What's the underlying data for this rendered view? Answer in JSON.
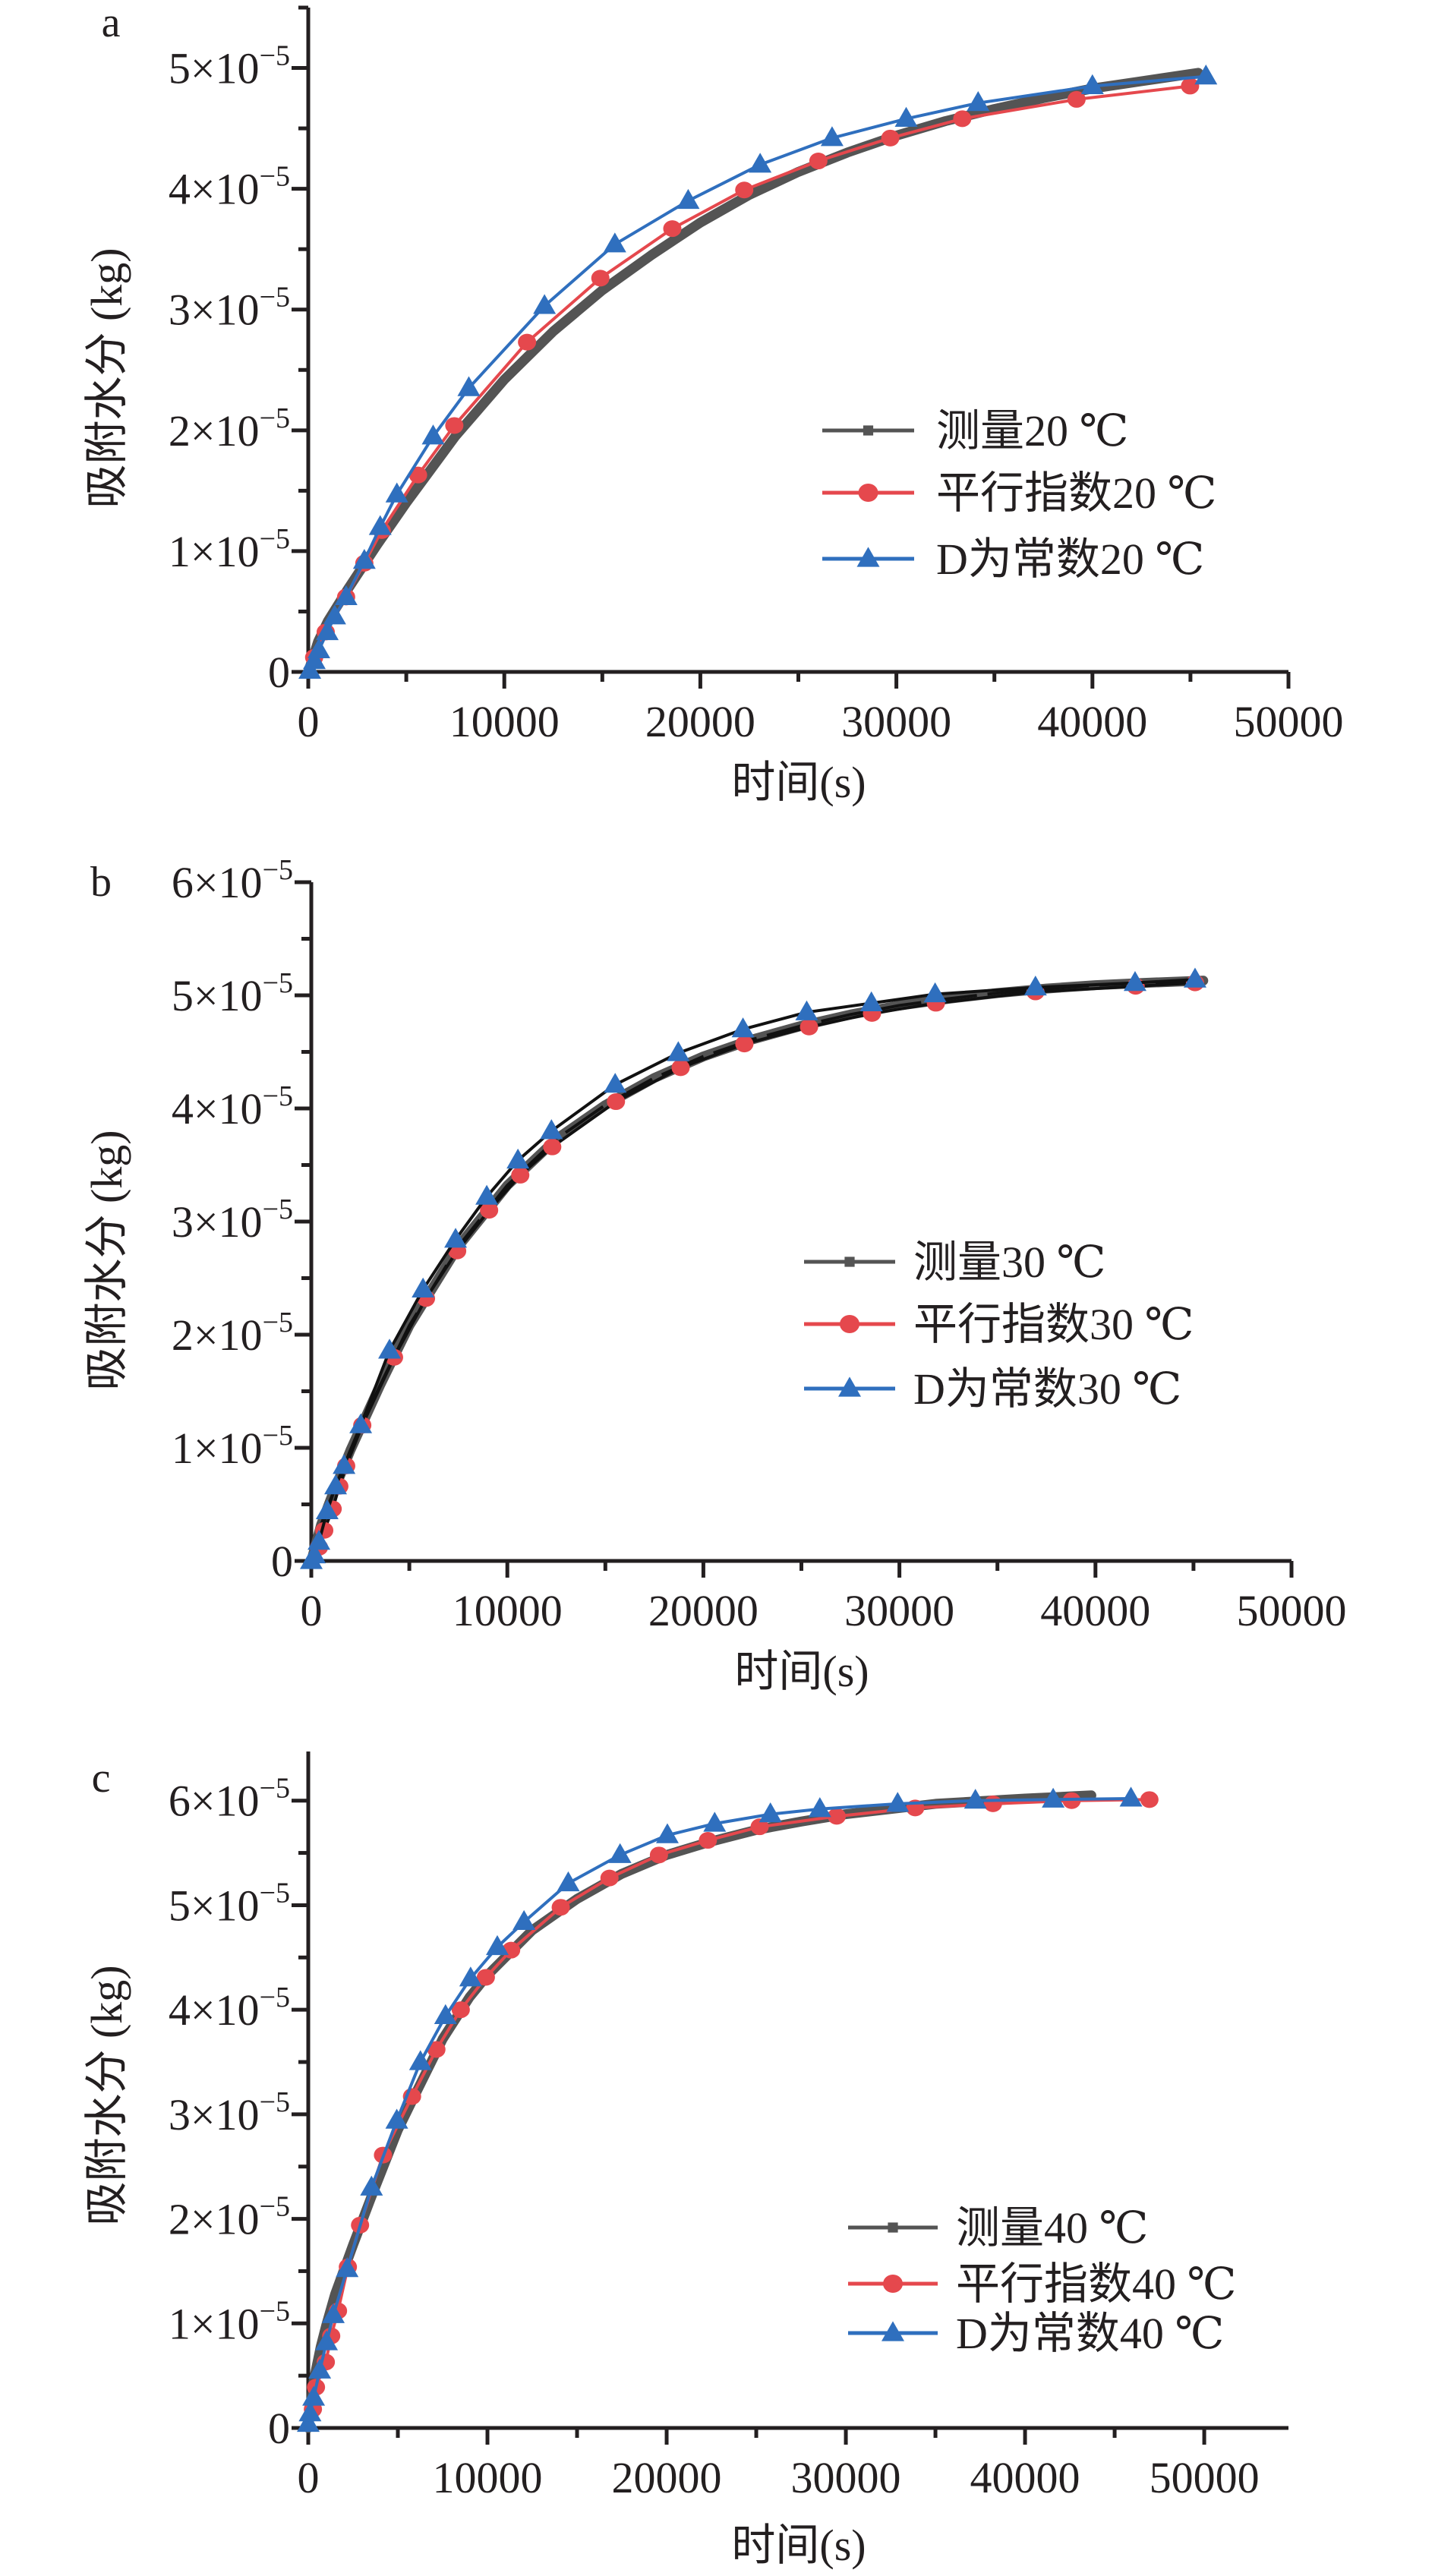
{
  "colors": {
    "measured": "#545454",
    "parallel": "#e5484d",
    "d_constant": "#2f6fbe",
    "axis": "#231f20"
  },
  "chart_data": [
    {
      "type": "line",
      "panel_label": "a",
      "xlabel": "时间(s)",
      "ylabel": "吸附水分 (kg)",
      "xlim": [
        0,
        50000
      ],
      "ylim": [
        0,
        5.5e-05
      ],
      "x_ticks": [
        0,
        10000,
        20000,
        30000,
        40000,
        50000
      ],
      "x_tick_labels": [
        "0",
        "10000",
        "20000",
        "30000",
        "40000",
        "50000"
      ],
      "y_ticks": [
        0,
        1e-05,
        2e-05,
        3e-05,
        4e-05,
        5e-05
      ],
      "y_tick_labels": [
        {
          "mantissa": "",
          "text": "0"
        },
        {
          "mantissa": "1×10",
          "exp": "−5"
        },
        {
          "mantissa": "2×10",
          "exp": "−5"
        },
        {
          "mantissa": "3×10",
          "exp": "−5"
        },
        {
          "mantissa": "4×10",
          "exp": "−5"
        },
        {
          "mantissa": "5×10",
          "exp": "−5"
        }
      ],
      "grid": false,
      "legend_position": "center-right",
      "series": [
        {
          "name": "测量20 ℃",
          "marker": "square",
          "style": "measured",
          "x": [
            0,
            500,
            1000,
            2000,
            3500,
            5000,
            7500,
            10000,
            12500,
            15000,
            17500,
            20000,
            22500,
            25000,
            27500,
            30000,
            32500,
            35000,
            37500,
            40000,
            42500,
            45400
          ],
          "y": [
            0,
            2.5e-06,
            4.2e-06,
            6.8e-06,
            1.05e-05,
            1.4e-05,
            1.95e-05,
            2.42e-05,
            2.82e-05,
            3.16e-05,
            3.45e-05,
            3.72e-05,
            3.95e-05,
            4.14e-05,
            4.3e-05,
            4.44e-05,
            4.56e-05,
            4.66e-05,
            4.75e-05,
            4.83e-05,
            4.89e-05,
            4.96e-05
          ]
        },
        {
          "name": "平行指数20 ℃",
          "marker": "circle",
          "style": "parallel",
          "x": [
            0,
            300,
            890,
            1930,
            2860,
            3750,
            5600,
            7450,
            11160,
            14900,
            18570,
            22240,
            26020,
            29690,
            33360,
            39190,
            44980
          ],
          "y": [
            0,
            1.2e-06,
            3.3e-06,
            6.2e-06,
            9e-06,
            1.17e-05,
            1.63e-05,
            2.04e-05,
            2.73e-05,
            3.26e-05,
            3.67e-05,
            3.99e-05,
            4.23e-05,
            4.42e-05,
            4.58e-05,
            4.74e-05,
            4.85e-05
          ]
        },
        {
          "name": "D为常数20 ℃",
          "marker": "triangle",
          "style": "d_constant",
          "x": [
            80,
            310,
            540,
            970,
            1350,
            1930,
            2860,
            3670,
            4520,
            6370,
            8190,
            12050,
            15640,
            19380,
            23050,
            26720,
            30500,
            34170,
            40000,
            45790
          ],
          "y": [
            1e-07,
            9e-07,
            1.8e-06,
            3.3e-06,
            4.6e-06,
            6.2e-06,
            9.2e-06,
            1.2e-05,
            1.47e-05,
            1.95e-05,
            2.35e-05,
            3.03e-05,
            3.54e-05,
            3.9e-05,
            4.2e-05,
            4.42e-05,
            4.58e-05,
            4.71e-05,
            4.85e-05,
            4.93e-05
          ]
        }
      ]
    },
    {
      "type": "line",
      "panel_label": "b",
      "xlabel": "时间(s)",
      "ylabel": "吸附水分 (kg)",
      "xlim": [
        0,
        50000
      ],
      "ylim": [
        0,
        6e-05
      ],
      "x_ticks": [
        0,
        10000,
        20000,
        30000,
        40000,
        50000
      ],
      "x_tick_labels": [
        "0",
        "10000",
        "20000",
        "30000",
        "40000",
        "50000"
      ],
      "y_ticks": [
        0,
        1e-05,
        2e-05,
        3e-05,
        4e-05,
        5e-05,
        6e-05
      ],
      "y_tick_labels": [
        {
          "mantissa": "",
          "text": "0"
        },
        {
          "mantissa": "1×10",
          "exp": "−5"
        },
        {
          "mantissa": "2×10",
          "exp": "−5"
        },
        {
          "mantissa": "3×10",
          "exp": "−5"
        },
        {
          "mantissa": "4×10",
          "exp": "−5"
        },
        {
          "mantissa": "5×10",
          "exp": "−5"
        },
        {
          "mantissa": "6×10",
          "exp": "−5"
        }
      ],
      "grid": false,
      "legend_position": "center-right",
      "series": [
        {
          "name": "测量30 ℃",
          "marker": "square",
          "style": "measured",
          "x": [
            0,
            500,
            1000,
            2000,
            3500,
            5000,
            7500,
            10000,
            12500,
            15000,
            17500,
            20000,
            22500,
            25000,
            27500,
            30000,
            32500,
            35000,
            37500,
            40000,
            42500,
            45500
          ],
          "y": [
            0,
            3.2e-06,
            5.5e-06,
            9.8e-06,
            1.55e-05,
            2.08e-05,
            2.78e-05,
            3.32e-05,
            3.73e-05,
            4.03e-05,
            4.27e-05,
            4.46e-05,
            4.61e-05,
            4.73e-05,
            4.83e-05,
            4.91e-05,
            4.97e-05,
            5.02e-05,
            5.06e-05,
            5.09e-05,
            5.11e-05,
            5.13e-05
          ]
        },
        {
          "name": "平行指数30 ℃",
          "marker": "circle",
          "style": "parallel",
          "x": [
            0,
            390,
            660,
            1090,
            1430,
            1780,
            2600,
            4220,
            5850,
            7440,
            9070,
            10660,
            12290,
            15540,
            18840,
            22090,
            25390,
            28600,
            31860,
            36940,
            42050,
            45080
          ],
          "y": [
            0,
            1.2e-06,
            2.7e-06,
            4.6e-06,
            6.6e-06,
            8.4e-06,
            1.2e-05,
            1.8e-05,
            2.32e-05,
            2.74e-05,
            3.1e-05,
            3.41e-05,
            3.66e-05,
            4.06e-05,
            4.36e-05,
            4.57e-05,
            4.72e-05,
            4.84e-05,
            4.93e-05,
            5.03e-05,
            5.08e-05,
            5.11e-05
          ]
        },
        {
          "name": "D为常数30 ℃",
          "marker": "triangle",
          "style": "d_constant",
          "x": [
            0,
            160,
            390,
            810,
            1240,
            1670,
            2520,
            3990,
            5700,
            7360,
            8950,
            10540,
            12250,
            15500,
            18720,
            22020,
            25270,
            28570,
            31820,
            36940,
            42020,
            45080
          ],
          "y": [
            0,
            5e-07,
            1.7e-06,
            4.4e-06,
            6.6e-06,
            8.4e-06,
            1.2e-05,
            1.86e-05,
            2.4e-05,
            2.84e-05,
            3.22e-05,
            3.54e-05,
            3.8e-05,
            4.21e-05,
            4.49e-05,
            4.7e-05,
            4.85e-05,
            4.93e-05,
            5.01e-05,
            5.07e-05,
            5.11e-05,
            5.14e-05
          ]
        }
      ]
    },
    {
      "type": "line",
      "panel_label": "c",
      "xlabel": "时间(s)",
      "ylabel": "吸附水分 (kg)",
      "xlim": [
        0,
        54700
      ],
      "ylim": [
        0,
        6.47e-05
      ],
      "x_ticks": [
        0,
        10000,
        20000,
        30000,
        40000,
        50000
      ],
      "x_tick_labels": [
        "0",
        "10000",
        "20000",
        "30000",
        "40000",
        "50000"
      ],
      "y_ticks": [
        0,
        1e-05,
        2e-05,
        3e-05,
        4e-05,
        5e-05,
        6e-05
      ],
      "y_tick_labels": [
        {
          "mantissa": "",
          "text": "0"
        },
        {
          "mantissa": "1×10",
          "exp": "−5"
        },
        {
          "mantissa": "2×10",
          "exp": "−5"
        },
        {
          "mantissa": "3×10",
          "exp": "−5"
        },
        {
          "mantissa": "4×10",
          "exp": "−5"
        },
        {
          "mantissa": "5×10",
          "exp": "−5"
        },
        {
          "mantissa": "6×10",
          "exp": "−5"
        }
      ],
      "grid": false,
      "legend_position": "bottom-right",
      "series": [
        {
          "name": "测量40 ℃",
          "marker": "square",
          "style": "measured",
          "x": [
            0,
            300,
            700,
            1000,
            1500,
            2500,
            3500,
            5000,
            6000,
            7500,
            9000,
            10000,
            12500,
            15000,
            17500,
            20000,
            22500,
            25000,
            27500,
            30000,
            35000,
            40000,
            43700
          ],
          "y": [
            0,
            4.5e-06,
            7.8e-06,
            9.8e-06,
            1.28e-05,
            1.75e-05,
            2.2e-05,
            2.85e-05,
            3.2e-05,
            3.72e-05,
            4.12e-05,
            4.33e-05,
            4.76e-05,
            5.06e-05,
            5.3e-05,
            5.48e-05,
            5.61e-05,
            5.72e-05,
            5.8e-05,
            5.87e-05,
            5.97e-05,
            6.02e-05,
            6.05e-05
          ]
        },
        {
          "name": "平行指数40 ℃",
          "marker": "circle",
          "style": "parallel",
          "x": [
            0,
            260,
            430,
            980,
            1280,
            1660,
            2210,
            2890,
            4170,
            5790,
            7150,
            8510,
            9910,
            11320,
            14090,
            16810,
            19570,
            22300,
            25190,
            29490,
            33870,
            38210,
            42600,
            46940
          ],
          "y": [
            0,
            1.8e-06,
            3.9e-06,
            6.3e-06,
            8.8e-06,
            1.12e-05,
            1.54e-05,
            1.94e-05,
            2.61e-05,
            3.17e-05,
            3.62e-05,
            4e-05,
            4.31e-05,
            4.57e-05,
            4.98e-05,
            5.26e-05,
            5.48e-05,
            5.62e-05,
            5.75e-05,
            5.85e-05,
            5.93e-05,
            5.97e-05,
            6e-05,
            6.01e-05
          ]
        },
        {
          "name": "D为常数40 ℃",
          "marker": "triangle",
          "style": "d_constant",
          "x": [
            0,
            100,
            300,
            640,
            1020,
            1400,
            2170,
            3530,
            4940,
            6260,
            7660,
            9060,
            10550,
            12040,
            14510,
            17400,
            20040,
            22680,
            25790,
            28550,
            32890,
            37230,
            41570,
            45910
          ],
          "y": [
            4e-07,
            1.4e-06,
            2.9e-06,
            5.5e-06,
            8.2e-06,
            1.08e-05,
            1.52e-05,
            2.3e-05,
            2.94e-05,
            3.5e-05,
            3.94e-05,
            4.3e-05,
            4.6e-05,
            4.84e-05,
            5.21e-05,
            5.48e-05,
            5.67e-05,
            5.78e-05,
            5.87e-05,
            5.92e-05,
            5.97e-05,
            6e-05,
            6.01e-05,
            6.02e-05
          ]
        }
      ]
    }
  ]
}
